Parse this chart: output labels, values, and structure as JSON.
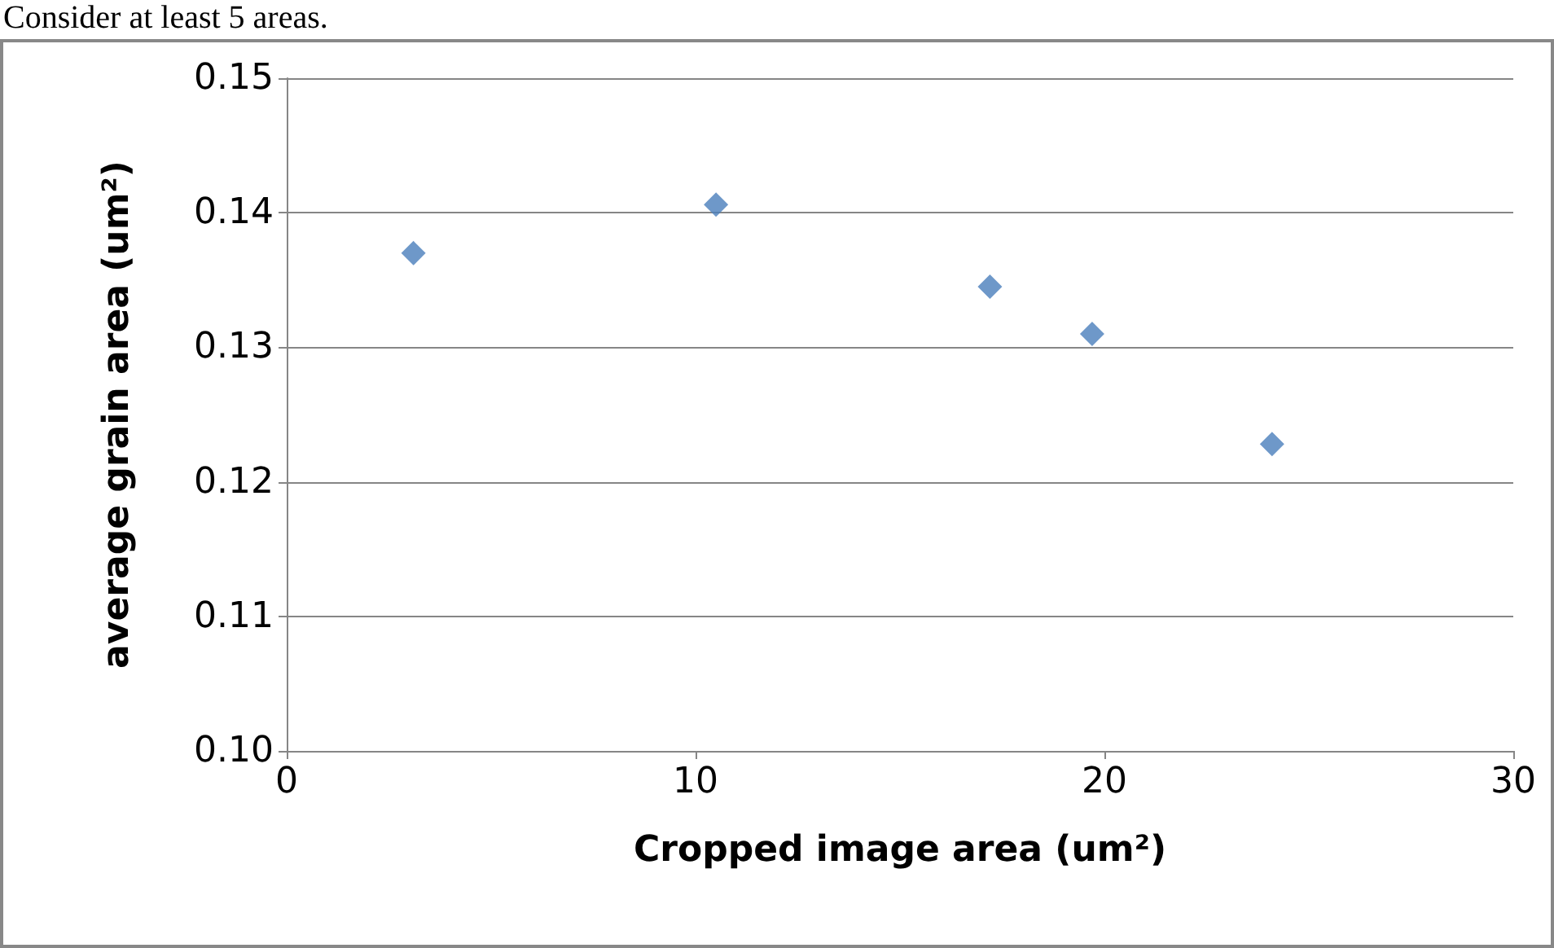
{
  "chart_data": {
    "type": "scatter",
    "xlabel": "Cropped image area (um²)",
    "ylabel": "average grain area (um²)",
    "annotations": [
      "Consider at least 5 areas."
    ],
    "x": [
      3.1,
      10.5,
      17.2,
      19.7,
      24.1
    ],
    "series": [
      {
        "color": "#4a7ebb",
        "values": [
          0.137,
          0.1406,
          0.1345,
          0.131,
          0.1228
        ]
      }
    ],
    "xlim": [
      0,
      30
    ],
    "xticks": [
      0,
      10,
      20,
      30
    ],
    "ylim": [
      0.1,
      0.15
    ],
    "yticks": [
      {
        "value": 0.1,
        "label": "0.10"
      },
      {
        "value": 0.11,
        "label": "0.11"
      },
      {
        "value": 0.12,
        "label": "0.12"
      },
      {
        "value": 0.13,
        "label": "0.13"
      },
      {
        "value": 0.14,
        "label": "0.14"
      },
      {
        "value": 0.15,
        "label": "0.15"
      }
    ],
    "grid": "y",
    "marker": "diamond"
  }
}
